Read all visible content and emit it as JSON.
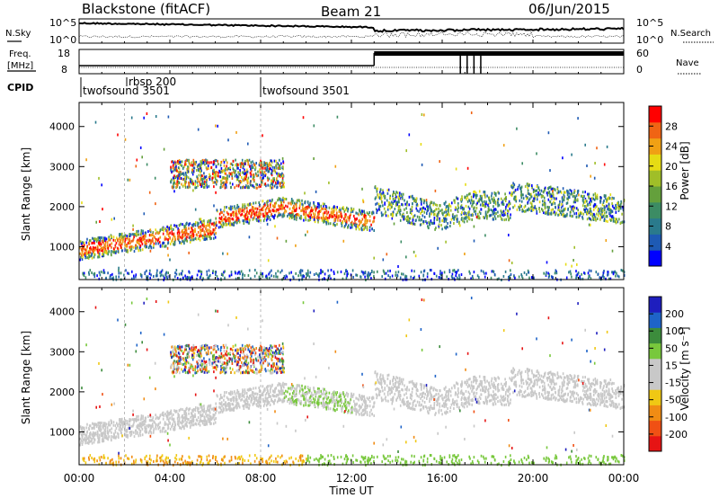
{
  "header": {
    "station": "Blackstone (fitACF)",
    "beam": "Beam 21",
    "date": "06/Jun/2015"
  },
  "summary_panels": {
    "nsky_label": "N.Sky",
    "nsearch_label": "N.Search",
    "nsky_ticks": [
      "10^5",
      "10^0"
    ],
    "nsearch_ticks": [
      "10^5",
      "10^0"
    ],
    "freq_label_1": "Freq.",
    "freq_label_2": "[MHz]",
    "freq_ticks": [
      "18",
      "8"
    ],
    "nave_label": "Nave",
    "nave_ticks": [
      "60",
      "0"
    ],
    "cpid_label": "CPID",
    "cpid_entries": [
      {
        "name": "twofsound 3501",
        "start": "00:00"
      },
      {
        "name": "rbsp 200",
        "start": "02:00"
      },
      {
        "name": "twofsound 3501",
        "start": "08:00"
      }
    ]
  },
  "chart_data": [
    {
      "type": "heatmap",
      "name": "power",
      "ylabel": "Slant Range [km]",
      "xlabel": "",
      "ylim": [
        180,
        4600
      ],
      "yticks": [
        1000,
        2000,
        3000,
        4000
      ],
      "xlim_hours": [
        0,
        24
      ],
      "colorbar_label": "Power [dB]",
      "colorbar_ticks": [
        "4",
        "8",
        "12",
        "16",
        "20",
        "24",
        "28"
      ],
      "colorbar_colors": [
        "#0000ff",
        "#1e5ab4",
        "#2a7a8c",
        "#3c8c64",
        "#64a03c",
        "#a0be28",
        "#e6dc14",
        "#f0a014",
        "#f06414",
        "#ff0000"
      ]
    },
    {
      "type": "heatmap",
      "name": "velocity",
      "ylabel": "Slant Range [km]",
      "xlabel": "Time UT",
      "ylim": [
        180,
        4600
      ],
      "yticks": [
        1000,
        2000,
        3000,
        4000
      ],
      "xlim_hours": [
        0,
        24
      ],
      "xticks": [
        "00:00",
        "04:00",
        "08:00",
        "12:00",
        "16:00",
        "20:00",
        "00:00"
      ],
      "colorbar_label": "Velocity [m s⁻¹]",
      "colorbar_ticks": [
        "200",
        "100",
        "50",
        "15",
        "-15",
        "-50",
        "-100",
        "-200"
      ],
      "colorbar_colors": [
        "#1e1ebe",
        "#1e64c8",
        "#3c8c3c",
        "#78c83c",
        "#c8c8c8",
        "#c8c8c8",
        "#f0c814",
        "#f08c14",
        "#f05014",
        "#e61414"
      ]
    }
  ]
}
